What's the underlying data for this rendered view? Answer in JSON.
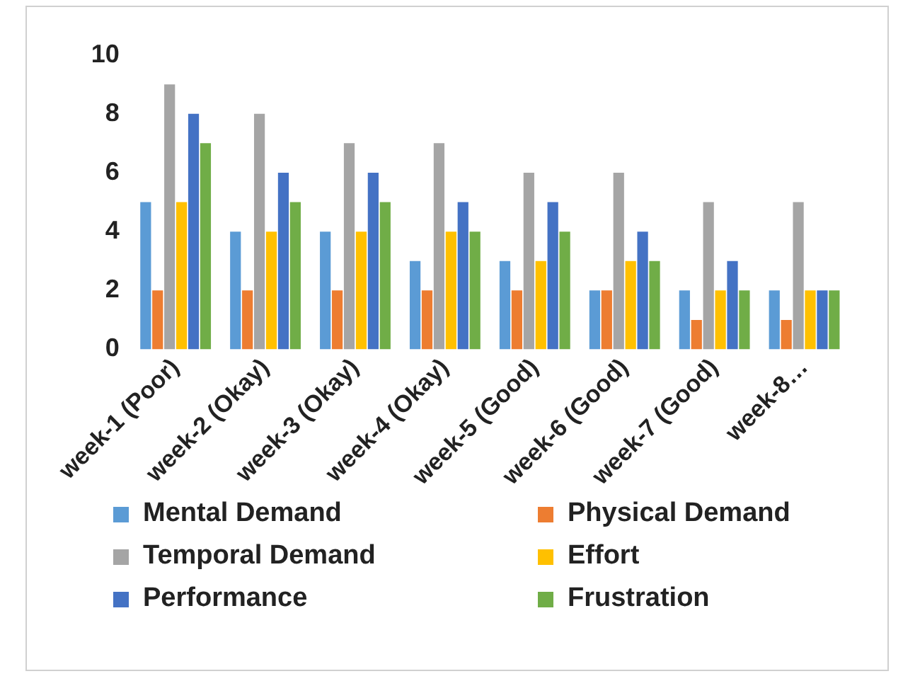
{
  "chart_data": {
    "type": "bar",
    "categories": [
      "week-1 (Poor)",
      "week-2 (Okay)",
      "week-3 (Okay)",
      "week-4 (Okay)",
      "week-5 (Good)",
      "week-6 (Good)",
      "week-7 (Good)",
      "week-8…"
    ],
    "series": [
      {
        "name": "Mental Demand",
        "color": "#5b9bd5",
        "values": [
          5,
          4,
          4,
          3,
          3,
          2,
          2,
          2
        ]
      },
      {
        "name": "Physical Demand",
        "color": "#ed7d31",
        "values": [
          2,
          2,
          2,
          2,
          2,
          2,
          1,
          1
        ]
      },
      {
        "name": "Temporal Demand",
        "color": "#a5a5a5",
        "values": [
          9,
          8,
          7,
          7,
          6,
          6,
          5,
          5
        ]
      },
      {
        "name": "Effort",
        "color": "#ffc000",
        "values": [
          5,
          4,
          4,
          4,
          3,
          3,
          2,
          2
        ]
      },
      {
        "name": "Performance",
        "color": "#4472c4",
        "values": [
          8,
          6,
          6,
          5,
          5,
          4,
          3,
          2
        ]
      },
      {
        "name": "Frustration",
        "color": "#70ad47",
        "values": [
          7,
          5,
          5,
          4,
          4,
          3,
          2,
          2
        ]
      }
    ],
    "ylim": [
      0,
      10
    ],
    "yticks": [
      0,
      2,
      4,
      6,
      8,
      10
    ],
    "grid": false,
    "legend": "bottom"
  }
}
